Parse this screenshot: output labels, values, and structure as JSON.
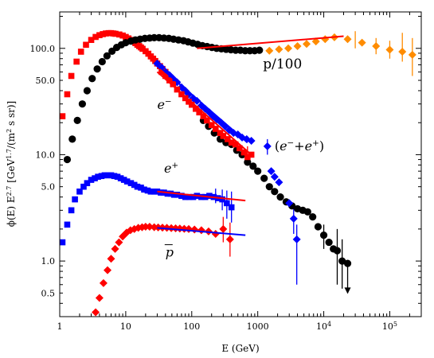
{
  "chart_data": {
    "type": "scatter",
    "xscale": "log",
    "yscale": "log",
    "xlim": [
      1,
      300000
    ],
    "ylim": [
      0.3,
      220
    ],
    "xlabel": "E (GeV)",
    "ylabel": "ϕ(E) E^2.7 [GeV^1.7/(m^2 s sr)]",
    "x_ticks": [
      {
        "v": 1,
        "t": "1"
      },
      {
        "v": 10,
        "t": "10"
      },
      {
        "v": 100,
        "t": "100"
      },
      {
        "v": 1000,
        "t": "1000"
      },
      {
        "v": 10000,
        "t": "10^4"
      },
      {
        "v": 100000,
        "t": "10^5"
      }
    ],
    "y_ticks": [
      {
        "v": 0.5,
        "t": "0.5"
      },
      {
        "v": 1,
        "t": "1.0"
      },
      {
        "v": 5,
        "t": "5.0"
      },
      {
        "v": 10,
        "t": "10.0"
      },
      {
        "v": 50,
        "t": "50.0"
      },
      {
        "v": 100,
        "t": "100.0"
      }
    ],
    "annotations": [
      {
        "text": "p/100",
        "x": 1200,
        "y": 65
      },
      {
        "text": "e−",
        "x": 30,
        "y": 27
      },
      {
        "text": "(e−+e+)",
        "x": 1800,
        "y": 11
      },
      {
        "text": "e+",
        "x": 38,
        "y": 6.8
      },
      {
        "text": "p̄",
        "x": 40,
        "y": 1.1
      }
    ],
    "series": [
      {
        "marker": "square",
        "color": "#ff0000",
        "points": [
          [
            1.1,
            23
          ],
          [
            1.3,
            37
          ],
          [
            1.5,
            55
          ],
          [
            1.8,
            75
          ],
          [
            2.1,
            93
          ],
          [
            2.5,
            108
          ],
          [
            3,
            120
          ],
          [
            3.5,
            128
          ],
          [
            4,
            133
          ],
          [
            4.5,
            136
          ],
          [
            5,
            138
          ],
          [
            5.5,
            139
          ],
          [
            6,
            139
          ],
          [
            6.5,
            138
          ],
          [
            7,
            137
          ],
          [
            8,
            135
          ],
          [
            9,
            132
          ],
          [
            10,
            128
          ],
          [
            11,
            124
          ],
          [
            12,
            120
          ],
          [
            13,
            116
          ],
          [
            14,
            112
          ],
          [
            15,
            108
          ],
          [
            16,
            105
          ],
          [
            17,
            102
          ],
          [
            18,
            99
          ],
          [
            20,
            94
          ],
          [
            22,
            89
          ],
          [
            24,
            84
          ],
          [
            26,
            80
          ],
          [
            28,
            76
          ],
          [
            30,
            72
          ],
          [
            33,
            68
          ],
          [
            36,
            64
          ],
          [
            40,
            60
          ]
        ]
      },
      {
        "marker": "circle",
        "color": "#000000",
        "points": [
          [
            1.3,
            9
          ],
          [
            1.55,
            14
          ],
          [
            1.85,
            21
          ],
          [
            2.2,
            30
          ],
          [
            2.6,
            40
          ],
          [
            3.1,
            52
          ],
          [
            3.7,
            64
          ],
          [
            4.4,
            75
          ],
          [
            5.2,
            85
          ],
          [
            6.2,
            94
          ],
          [
            7.3,
            102
          ],
          [
            8.6,
            108
          ],
          [
            10,
            113
          ],
          [
            12,
            117
          ],
          [
            14,
            120
          ],
          [
            16.5,
            122
          ],
          [
            19.5,
            124
          ],
          [
            23,
            125
          ],
          [
            27,
            126
          ],
          [
            32,
            126
          ],
          [
            38,
            125
          ],
          [
            45,
            124
          ],
          [
            53,
            122
          ],
          [
            63,
            120
          ],
          [
            75,
            118
          ],
          [
            88,
            115
          ],
          [
            104,
            112
          ],
          [
            123,
            109
          ],
          [
            145,
            106
          ],
          [
            171,
            104
          ],
          [
            202,
            102
          ],
          [
            238,
            100
          ],
          [
            281,
            99
          ],
          [
            332,
            98
          ],
          [
            392,
            97
          ],
          [
            463,
            96
          ],
          [
            546,
            96
          ],
          [
            645,
            95
          ],
          [
            761,
            95
          ],
          [
            898,
            95
          ],
          [
            1060,
            96
          ]
        ]
      },
      {
        "marker": "diamond",
        "color": "#ff8c00",
        "points": [
          [
            1500,
            95
          ],
          [
            2100,
            98
          ],
          [
            2900,
            100
          ],
          [
            4000,
            105
          ],
          [
            5500,
            110
          ],
          [
            7600,
            116
          ],
          [
            10500,
            122
          ],
          [
            14500,
            127
          ],
          [
            23000,
            122
          ],
          [
            38000,
            113
          ],
          [
            62000,
            105
          ],
          [
            100000,
            97
          ],
          [
            155000,
            93
          ],
          [
            220000,
            87
          ]
        ]
      },
      {
        "marker": "circle",
        "color": "#000000",
        "points": [
          [
            150,
            21
          ],
          [
            180,
            18.5
          ],
          [
            220,
            16
          ],
          [
            270,
            14
          ],
          [
            330,
            13
          ],
          [
            400,
            12.5
          ],
          [
            480,
            11
          ],
          [
            580,
            10
          ],
          [
            700,
            8.5
          ],
          [
            850,
            7.8
          ],
          [
            1000,
            7
          ],
          [
            1250,
            6
          ],
          [
            1500,
            5
          ],
          [
            1800,
            4.5
          ],
          [
            2200,
            4
          ],
          [
            2700,
            3.6
          ],
          [
            3300,
            3.3
          ],
          [
            4000,
            3.1
          ],
          [
            4800,
            3.0
          ],
          [
            5700,
            2.9
          ],
          [
            6800,
            2.6
          ],
          [
            8200,
            2.1
          ],
          [
            10000,
            1.75
          ],
          [
            12000,
            1.5
          ],
          [
            14000,
            1.3
          ],
          [
            16000,
            1.25
          ],
          [
            19000,
            1.0
          ],
          [
            23000,
            0.95
          ]
        ]
      },
      {
        "marker": "diamond",
        "color": "#0000ff",
        "points": [
          [
            30,
            72
          ],
          [
            35,
            66
          ],
          [
            40,
            60
          ],
          [
            46,
            56
          ],
          [
            52,
            52
          ],
          [
            60,
            48
          ],
          [
            70,
            43
          ],
          [
            80,
            40
          ],
          [
            90,
            37
          ],
          [
            105,
            34
          ],
          [
            120,
            32
          ],
          [
            140,
            29
          ],
          [
            160,
            27
          ],
          [
            185,
            25
          ],
          [
            210,
            23
          ],
          [
            240,
            21.5
          ],
          [
            280,
            20
          ],
          [
            320,
            18.5
          ],
          [
            370,
            17
          ],
          [
            430,
            16
          ],
          [
            500,
            15.5
          ],
          [
            580,
            14.5
          ],
          [
            680,
            14
          ],
          [
            800,
            13.5
          ],
          [
            1400,
            12
          ],
          [
            1600,
            7
          ],
          [
            1800,
            6.2
          ],
          [
            2100,
            5.5
          ],
          [
            3000,
            3.5
          ],
          [
            3500,
            2.5
          ],
          [
            3900,
            1.6
          ]
        ]
      },
      {
        "marker": "square",
        "color": "#ff0000",
        "points": [
          [
            35,
            60
          ],
          [
            40,
            55
          ],
          [
            46,
            50
          ],
          [
            52,
            46
          ],
          [
            60,
            41
          ],
          [
            70,
            37
          ],
          [
            80,
            34
          ],
          [
            90,
            31.5
          ],
          [
            100,
            29.5
          ],
          [
            115,
            27
          ],
          [
            130,
            25
          ],
          [
            150,
            23
          ],
          [
            170,
            21
          ],
          [
            200,
            19
          ],
          [
            230,
            17.5
          ],
          [
            270,
            16
          ],
          [
            300,
            15
          ],
          [
            350,
            14
          ],
          [
            400,
            13
          ],
          [
            460,
            12.5
          ],
          [
            530,
            11.5
          ],
          [
            620,
            10.5
          ],
          [
            700,
            9.5
          ],
          [
            800,
            10
          ]
        ]
      },
      {
        "marker": "square",
        "color": "#0000ff",
        "points": [
          [
            1.1,
            1.5
          ],
          [
            1.3,
            2.2
          ],
          [
            1.5,
            3.0
          ],
          [
            1.7,
            3.8
          ],
          [
            2,
            4.5
          ],
          [
            2.3,
            5.0
          ],
          [
            2.6,
            5.4
          ],
          [
            3,
            5.8
          ],
          [
            3.4,
            6.0
          ],
          [
            3.8,
            6.2
          ],
          [
            4.3,
            6.3
          ],
          [
            4.8,
            6.4
          ],
          [
            5.4,
            6.4
          ],
          [
            6,
            6.4
          ],
          [
            6.7,
            6.3
          ],
          [
            7.5,
            6.2
          ],
          [
            8.4,
            6.0
          ],
          [
            9.4,
            5.8
          ],
          [
            10.5,
            5.6
          ],
          [
            12,
            5.4
          ],
          [
            13.5,
            5.2
          ],
          [
            15,
            5.0
          ],
          [
            17,
            4.9
          ],
          [
            19,
            4.7
          ],
          [
            21.5,
            4.6
          ],
          [
            24,
            4.5
          ],
          [
            27,
            4.5
          ],
          [
            30,
            4.5
          ],
          [
            34,
            4.4
          ],
          [
            38,
            4.4
          ],
          [
            43,
            4.3
          ],
          [
            48,
            4.3
          ],
          [
            54,
            4.2
          ],
          [
            60,
            4.2
          ],
          [
            70,
            4.1
          ],
          [
            80,
            4.0
          ],
          [
            92,
            4.0
          ],
          [
            105,
            4.0
          ],
          [
            120,
            4.1
          ],
          [
            140,
            4.0
          ],
          [
            160,
            4.0
          ],
          [
            185,
            4.1
          ],
          [
            215,
            4.0
          ],
          [
            250,
            3.9
          ],
          [
            290,
            3.8
          ],
          [
            340,
            3.5
          ],
          [
            400,
            3.2
          ]
        ]
      },
      {
        "marker": "diamond",
        "color": "#ff0000",
        "points": [
          [
            3.5,
            0.33
          ],
          [
            4,
            0.45
          ],
          [
            4.6,
            0.62
          ],
          [
            5.3,
            0.82
          ],
          [
            6,
            1.05
          ],
          [
            6.9,
            1.3
          ],
          [
            7.9,
            1.5
          ],
          [
            9,
            1.7
          ],
          [
            10.3,
            1.85
          ],
          [
            11.8,
            1.95
          ],
          [
            13.5,
            2.0
          ],
          [
            15.5,
            2.05
          ],
          [
            17.7,
            2.08
          ],
          [
            20,
            2.1
          ],
          [
            23,
            2.1
          ],
          [
            27,
            2.08
          ],
          [
            31,
            2.07
          ],
          [
            36,
            2.06
          ],
          [
            42,
            2.05
          ],
          [
            49,
            2.04
          ],
          [
            57,
            2.03
          ],
          [
            66,
            2.02
          ],
          [
            77,
            2.01
          ],
          [
            90,
            2.0
          ],
          [
            110,
            1.98
          ],
          [
            140,
            1.95
          ],
          [
            180,
            1.9
          ],
          [
            230,
            1.8
          ],
          [
            300,
            2.0
          ],
          [
            380,
            1.6
          ]
        ]
      }
    ],
    "fit_lines": [
      {
        "color": "#ff0000",
        "from": [
          120,
          100
        ],
        "to": [
          20000,
          130
        ]
      },
      {
        "color": "#ff0000",
        "from": [
          30,
          60
        ],
        "to": [
          800,
          10
        ]
      },
      {
        "color": "#0000ff",
        "from": [
          30,
          70
        ],
        "to": [
          700,
          13
        ]
      },
      {
        "color": "#ff0000",
        "from": [
          30,
          4.5
        ],
        "to": [
          650,
          3.7
        ]
      },
      {
        "color": "#0000ff",
        "from": [
          30,
          2.05
        ],
        "to": [
          650,
          1.75
        ]
      }
    ],
    "error_bars": [
      {
        "x": 30000,
        "lo": 100,
        "hi": 145,
        "color": "#ff8c00"
      },
      {
        "x": 62000,
        "lo": 88,
        "hi": 125,
        "color": "#ff8c00"
      },
      {
        "x": 100000,
        "lo": 80,
        "hi": 118,
        "color": "#ff8c00"
      },
      {
        "x": 155000,
        "lo": 75,
        "hi": 140,
        "color": "#ff8c00"
      },
      {
        "x": 220000,
        "lo": 55,
        "hi": 125,
        "color": "#ff8c00"
      },
      {
        "x": 700,
        "lo": 8,
        "hi": 12,
        "color": "#ff0000"
      },
      {
        "x": 1400,
        "lo": 10,
        "hi": 14,
        "color": "#0000ff"
      },
      {
        "x": 3500,
        "lo": 1.8,
        "hi": 3.4,
        "color": "#0000ff"
      },
      {
        "x": 3900,
        "lo": 0.6,
        "hi": 2.2,
        "color": "#0000ff"
      },
      {
        "x": 10000,
        "lo": 1.3,
        "hi": 2.2,
        "color": "#000000"
      },
      {
        "x": 16000,
        "lo": 0.6,
        "hi": 2.0,
        "color": "#000000"
      },
      {
        "x": 19000,
        "lo": 0.55,
        "hi": 1.6,
        "color": "#000000"
      },
      {
        "x": 230,
        "lo": 3.5,
        "hi": 4.8,
        "color": "#0000ff"
      },
      {
        "x": 290,
        "lo": 3.0,
        "hi": 4.7,
        "color": "#0000ff"
      },
      {
        "x": 340,
        "lo": 2.5,
        "hi": 4.6,
        "color": "#0000ff"
      },
      {
        "x": 400,
        "lo": 2.3,
        "hi": 4.5,
        "color": "#0000ff"
      },
      {
        "x": 300,
        "lo": 1.5,
        "hi": 2.6,
        "color": "#ff0000"
      },
      {
        "x": 380,
        "lo": 1.1,
        "hi": 2.3,
        "color": "#ff0000"
      }
    ],
    "upper_limit_arrow": {
      "x": 23000,
      "from": 0.9,
      "to": 0.5,
      "color": "#000000"
    }
  }
}
